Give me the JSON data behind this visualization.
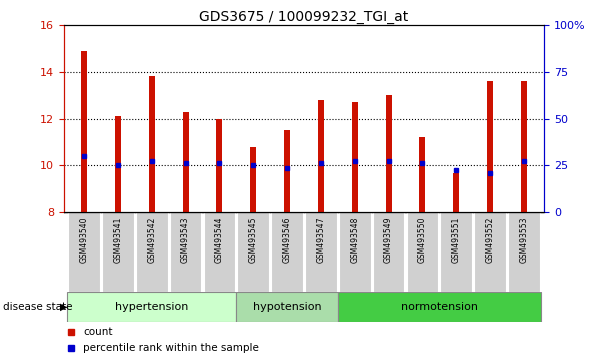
{
  "title": "GDS3675 / 100099232_TGI_at",
  "samples": [
    "GSM493540",
    "GSM493541",
    "GSM493542",
    "GSM493543",
    "GSM493544",
    "GSM493545",
    "GSM493546",
    "GSM493547",
    "GSM493548",
    "GSM493549",
    "GSM493550",
    "GSM493551",
    "GSM493552",
    "GSM493553"
  ],
  "bar_values": [
    14.9,
    12.1,
    13.8,
    12.3,
    12.0,
    10.8,
    11.5,
    12.8,
    12.7,
    13.0,
    11.2,
    9.7,
    13.6,
    13.6
  ],
  "blue_dot_values": [
    10.4,
    10.0,
    10.2,
    10.1,
    10.1,
    10.0,
    9.9,
    10.1,
    10.2,
    10.2,
    10.1,
    9.8,
    9.7,
    10.2
  ],
  "ylim": [
    8,
    16
  ],
  "yticks": [
    8,
    10,
    12,
    14,
    16
  ],
  "right_ylim": [
    0,
    100
  ],
  "right_yticks": [
    0,
    25,
    50,
    75,
    100
  ],
  "bar_color": "#cc1100",
  "dot_color": "#0000cc",
  "bar_bottom": 8,
  "groups": [
    {
      "label": "hypertension",
      "start": 0,
      "end": 5
    },
    {
      "label": "hypotension",
      "start": 5,
      "end": 8
    },
    {
      "label": "normotension",
      "start": 8,
      "end": 14
    }
  ],
  "group_colors": [
    "#ccffcc",
    "#aaddaa",
    "#44cc44"
  ],
  "legend_count_color": "#cc1100",
  "legend_dot_color": "#0000cc",
  "left_tick_color": "#cc1100",
  "right_tick_color": "#0000cc"
}
